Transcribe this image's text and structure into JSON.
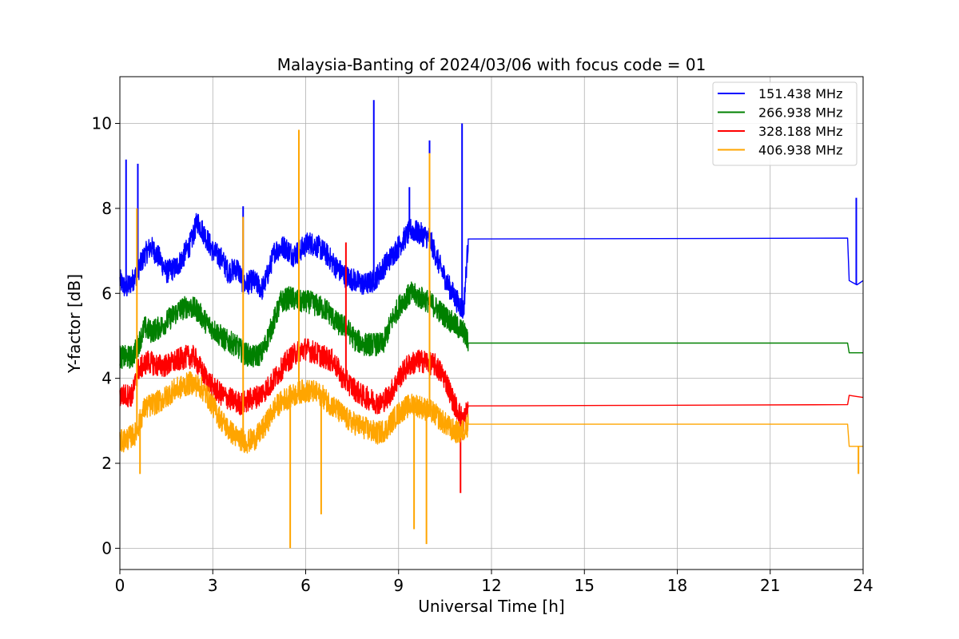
{
  "chart_data": {
    "type": "line",
    "title": "Malaysia-Banting of 2024/03/06 with focus code = 01",
    "xlabel": "Universal Time [h]",
    "ylabel": "Y-factor [dB]",
    "xlim": [
      0,
      24
    ],
    "ylim": [
      -0.5,
      11.1
    ],
    "xticks": [
      0,
      3,
      6,
      9,
      12,
      15,
      18,
      21,
      24
    ],
    "yticks": [
      0,
      2,
      4,
      6,
      8,
      10
    ],
    "grid": true,
    "legend_position": "top-right",
    "series": [
      {
        "name": "151.438 MHz",
        "color": "#0000ff",
        "points": [
          [
            0.0,
            6.3
          ],
          [
            0.2,
            6.1
          ],
          [
            0.5,
            6.4
          ],
          [
            0.8,
            6.9
          ],
          [
            1.0,
            7.1
          ],
          [
            1.3,
            6.8
          ],
          [
            1.5,
            6.5
          ],
          [
            1.8,
            6.6
          ],
          [
            2.0,
            6.8
          ],
          [
            2.3,
            7.2
          ],
          [
            2.5,
            7.7
          ],
          [
            2.8,
            7.3
          ],
          [
            3.0,
            7.0
          ],
          [
            3.3,
            6.8
          ],
          [
            3.5,
            6.5
          ],
          [
            3.8,
            6.6
          ],
          [
            4.0,
            6.2
          ],
          [
            4.3,
            6.3
          ],
          [
            4.6,
            6.1
          ],
          [
            4.8,
            6.5
          ],
          [
            5.0,
            7.0
          ],
          [
            5.3,
            7.1
          ],
          [
            5.6,
            6.9
          ],
          [
            5.8,
            7.0
          ],
          [
            6.1,
            7.2
          ],
          [
            6.4,
            7.1
          ],
          [
            6.7,
            6.9
          ],
          [
            7.0,
            6.6
          ],
          [
            7.3,
            6.4
          ],
          [
            7.6,
            6.3
          ],
          [
            7.9,
            6.2
          ],
          [
            8.2,
            6.3
          ],
          [
            8.5,
            6.6
          ],
          [
            8.8,
            6.9
          ],
          [
            9.1,
            7.2
          ],
          [
            9.4,
            7.5
          ],
          [
            9.7,
            7.4
          ],
          [
            10.0,
            7.3
          ],
          [
            10.3,
            6.7
          ],
          [
            10.6,
            6.2
          ],
          [
            10.9,
            5.8
          ],
          [
            11.1,
            5.6
          ],
          [
            11.25,
            7.28
          ],
          [
            23.5,
            7.3
          ],
          [
            23.55,
            6.3
          ],
          [
            23.8,
            6.2
          ],
          [
            24.0,
            6.3
          ]
        ],
        "spikes": [
          [
            0.2,
            9.15
          ],
          [
            0.58,
            9.05
          ],
          [
            3.98,
            8.05
          ],
          [
            8.2,
            10.55
          ],
          [
            10.0,
            9.6
          ],
          [
            11.05,
            10.0
          ],
          [
            23.78,
            8.25
          ],
          [
            9.35,
            8.5
          ]
        ]
      },
      {
        "name": "266.938 MHz",
        "color": "#008000",
        "points": [
          [
            0.0,
            4.5
          ],
          [
            0.4,
            4.5
          ],
          [
            0.6,
            4.8
          ],
          [
            0.8,
            5.2
          ],
          [
            1.0,
            5.1
          ],
          [
            1.3,
            5.2
          ],
          [
            1.6,
            5.4
          ],
          [
            1.9,
            5.6
          ],
          [
            2.2,
            5.7
          ],
          [
            2.5,
            5.6
          ],
          [
            2.8,
            5.3
          ],
          [
            3.1,
            5.1
          ],
          [
            3.4,
            4.9
          ],
          [
            3.7,
            4.8
          ],
          [
            4.0,
            4.6
          ],
          [
            4.3,
            4.5
          ],
          [
            4.6,
            4.6
          ],
          [
            4.9,
            5.2
          ],
          [
            5.2,
            5.8
          ],
          [
            5.5,
            5.9
          ],
          [
            5.8,
            5.8
          ],
          [
            6.1,
            5.8
          ],
          [
            6.4,
            5.7
          ],
          [
            6.7,
            5.6
          ],
          [
            7.0,
            5.3
          ],
          [
            7.3,
            5.2
          ],
          [
            7.6,
            4.9
          ],
          [
            7.9,
            4.8
          ],
          [
            8.2,
            4.8
          ],
          [
            8.5,
            4.8
          ],
          [
            8.8,
            5.4
          ],
          [
            9.1,
            5.8
          ],
          [
            9.4,
            6.0
          ],
          [
            9.7,
            5.9
          ],
          [
            10.0,
            5.8
          ],
          [
            10.3,
            5.6
          ],
          [
            10.6,
            5.4
          ],
          [
            10.9,
            5.2
          ],
          [
            11.1,
            5.1
          ],
          [
            11.25,
            4.83
          ],
          [
            23.5,
            4.83
          ],
          [
            23.55,
            4.6
          ],
          [
            24.0,
            4.6
          ]
        ],
        "spikes": []
      },
      {
        "name": "328.188 MHz",
        "color": "#ff0000",
        "points": [
          [
            0.0,
            3.6
          ],
          [
            0.4,
            3.6
          ],
          [
            0.6,
            4.2
          ],
          [
            0.9,
            4.4
          ],
          [
            1.2,
            4.3
          ],
          [
            1.5,
            4.3
          ],
          [
            1.8,
            4.4
          ],
          [
            2.1,
            4.5
          ],
          [
            2.4,
            4.5
          ],
          [
            2.7,
            4.1
          ],
          [
            3.0,
            3.8
          ],
          [
            3.3,
            3.6
          ],
          [
            3.6,
            3.5
          ],
          [
            3.9,
            3.4
          ],
          [
            4.2,
            3.5
          ],
          [
            4.5,
            3.6
          ],
          [
            4.8,
            3.8
          ],
          [
            5.1,
            4.1
          ],
          [
            5.4,
            4.4
          ],
          [
            5.7,
            4.6
          ],
          [
            6.0,
            4.7
          ],
          [
            6.3,
            4.6
          ],
          [
            6.6,
            4.5
          ],
          [
            6.9,
            4.4
          ],
          [
            7.2,
            4.0
          ],
          [
            7.5,
            3.8
          ],
          [
            7.8,
            3.6
          ],
          [
            8.1,
            3.5
          ],
          [
            8.4,
            3.4
          ],
          [
            8.7,
            3.6
          ],
          [
            9.0,
            4.0
          ],
          [
            9.3,
            4.3
          ],
          [
            9.6,
            4.4
          ],
          [
            9.9,
            4.4
          ],
          [
            10.2,
            4.3
          ],
          [
            10.5,
            4.0
          ],
          [
            10.8,
            3.4
          ],
          [
            11.1,
            3.0
          ],
          [
            11.25,
            3.35
          ],
          [
            23.5,
            3.38
          ],
          [
            23.55,
            3.6
          ],
          [
            24.0,
            3.55
          ]
        ],
        "spikes": [
          [
            7.3,
            7.2
          ],
          [
            11.0,
            1.3
          ]
        ]
      },
      {
        "name": "406.938 MHz",
        "color": "#ffa500",
        "points": [
          [
            0.0,
            2.5
          ],
          [
            0.3,
            2.6
          ],
          [
            0.5,
            2.7
          ],
          [
            0.8,
            3.3
          ],
          [
            1.1,
            3.4
          ],
          [
            1.4,
            3.5
          ],
          [
            1.7,
            3.7
          ],
          [
            2.0,
            3.8
          ],
          [
            2.3,
            3.9
          ],
          [
            2.6,
            3.8
          ],
          [
            2.9,
            3.5
          ],
          [
            3.2,
            3.1
          ],
          [
            3.5,
            2.8
          ],
          [
            3.8,
            2.6
          ],
          [
            4.1,
            2.5
          ],
          [
            4.4,
            2.6
          ],
          [
            4.7,
            2.9
          ],
          [
            5.0,
            3.3
          ],
          [
            5.3,
            3.5
          ],
          [
            5.6,
            3.6
          ],
          [
            5.9,
            3.7
          ],
          [
            6.2,
            3.7
          ],
          [
            6.5,
            3.6
          ],
          [
            6.8,
            3.4
          ],
          [
            7.1,
            3.2
          ],
          [
            7.4,
            3.0
          ],
          [
            7.7,
            2.9
          ],
          [
            8.0,
            2.8
          ],
          [
            8.3,
            2.7
          ],
          [
            8.6,
            2.8
          ],
          [
            8.9,
            3.1
          ],
          [
            9.2,
            3.3
          ],
          [
            9.5,
            3.4
          ],
          [
            9.8,
            3.3
          ],
          [
            10.1,
            3.2
          ],
          [
            10.4,
            3.0
          ],
          [
            10.7,
            2.8
          ],
          [
            11.0,
            2.7
          ],
          [
            11.25,
            2.92
          ],
          [
            23.5,
            2.92
          ],
          [
            23.55,
            2.4
          ],
          [
            24.0,
            2.4
          ]
        ],
        "spikes": [
          [
            0.55,
            8.0
          ],
          [
            0.65,
            1.75
          ],
          [
            5.78,
            9.85
          ],
          [
            5.5,
            0.0
          ],
          [
            6.5,
            0.8
          ],
          [
            9.9,
            0.1
          ],
          [
            10.0,
            9.3
          ],
          [
            9.5,
            0.45
          ],
          [
            23.85,
            1.75
          ],
          [
            3.98,
            7.8
          ]
        ]
      }
    ]
  }
}
